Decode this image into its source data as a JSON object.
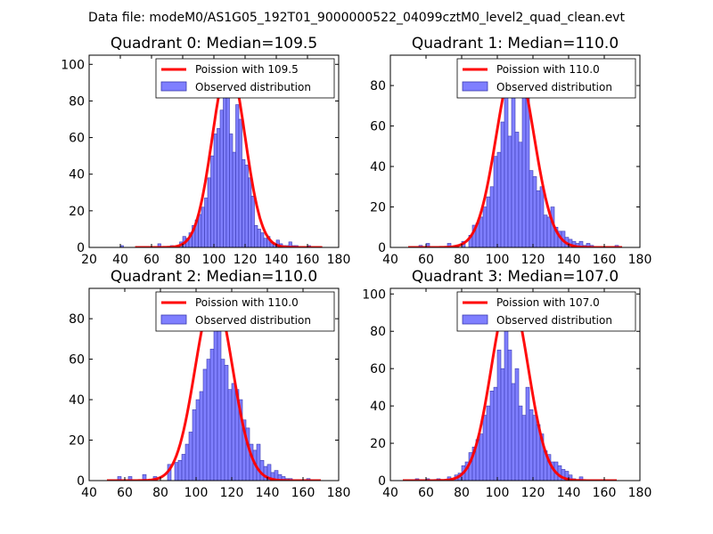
{
  "figure": {
    "suptitle": "Data file: modeM0/AS1G05_192T01_9000000522_04099cztM0_level2_quad_clean.evt"
  },
  "colors": {
    "histogram_fill": "#7f7fff",
    "histogram_edge": "#3a3ab0",
    "poisson_line": "#ff0000",
    "axes": "#000000",
    "background": "#ffffff"
  },
  "chart_data": [
    {
      "type": "bar",
      "title": "Quadrant 0: Median=109.5",
      "xlim": [
        20,
        180
      ],
      "ylim": [
        0,
        105
      ],
      "xticks": [
        20,
        40,
        60,
        80,
        100,
        120,
        140,
        160,
        180
      ],
      "yticks": [
        0,
        20,
        40,
        60,
        80,
        100
      ],
      "median": 109.5,
      "poisson_peak": 100,
      "legend": {
        "position": "top-right",
        "line_label": "Poission with 109.5",
        "bar_label": "Observed distribution"
      },
      "bar_width": 2,
      "bins": [
        40,
        64,
        72,
        78,
        80,
        82,
        84,
        86,
        88,
        90,
        92,
        94,
        96,
        98,
        100,
        102,
        104,
        106,
        108,
        110,
        112,
        114,
        116,
        118,
        120,
        122,
        124,
        126,
        128,
        130,
        132,
        134,
        136,
        138,
        140,
        142,
        144,
        146,
        148,
        150,
        152,
        160
      ],
      "counts": [
        1,
        2,
        1,
        3,
        6,
        5,
        8,
        12,
        15,
        18,
        22,
        27,
        38,
        50,
        62,
        65,
        75,
        96,
        88,
        62,
        52,
        78,
        70,
        48,
        45,
        38,
        28,
        12,
        10,
        8,
        5,
        6,
        3,
        2,
        4,
        2,
        1,
        1,
        3,
        1,
        1,
        1
      ]
    },
    {
      "type": "bar",
      "title": "Quadrant 1: Median=110.0",
      "xlim": [
        40,
        180
      ],
      "ylim": [
        0,
        95
      ],
      "xticks": [
        40,
        60,
        80,
        100,
        120,
        140,
        160,
        180
      ],
      "yticks": [
        0,
        20,
        40,
        60,
        80
      ],
      "median": 110.0,
      "poisson_peak": 92,
      "legend": {
        "position": "top-right",
        "line_label": "Poission with 110.0",
        "bar_label": "Observed distribution"
      },
      "bar_width": 2,
      "bins": [
        56,
        60,
        72,
        76,
        80,
        84,
        86,
        88,
        90,
        92,
        94,
        96,
        98,
        100,
        102,
        104,
        106,
        108,
        110,
        112,
        114,
        116,
        118,
        120,
        122,
        124,
        126,
        128,
        130,
        132,
        134,
        136,
        138,
        140,
        142,
        144,
        146,
        148,
        150,
        152,
        166
      ],
      "counts": [
        1,
        2,
        2,
        1,
        3,
        6,
        11,
        12,
        15,
        20,
        25,
        30,
        45,
        47,
        62,
        80,
        55,
        90,
        57,
        52,
        80,
        75,
        38,
        35,
        28,
        30,
        16,
        15,
        20,
        10,
        8,
        8,
        5,
        4,
        3,
        2,
        3,
        1,
        2,
        1,
        1
      ]
    },
    {
      "type": "bar",
      "title": "Quadrant 2: Median=110.0",
      "xlim": [
        40,
        180
      ],
      "ylim": [
        0,
        95
      ],
      "xticks": [
        40,
        60,
        80,
        100,
        120,
        140,
        160,
        180
      ],
      "yticks": [
        0,
        20,
        40,
        60,
        80
      ],
      "median": 110.0,
      "poisson_peak": 92,
      "legend": {
        "position": "top-right",
        "line_label": "Poission with 110.0",
        "bar_label": "Observed distribution"
      },
      "bar_width": 2,
      "bins": [
        56,
        62,
        70,
        76,
        84,
        88,
        90,
        92,
        94,
        96,
        98,
        100,
        102,
        104,
        106,
        108,
        110,
        112,
        114,
        116,
        118,
        120,
        122,
        124,
        126,
        128,
        130,
        132,
        134,
        136,
        138,
        140,
        142,
        144,
        146,
        148,
        150,
        152,
        162
      ],
      "counts": [
        2,
        2,
        3,
        2,
        8,
        9,
        10,
        13,
        18,
        24,
        35,
        40,
        44,
        55,
        60,
        65,
        75,
        83,
        60,
        57,
        45,
        48,
        45,
        40,
        30,
        26,
        18,
        15,
        18,
        10,
        7,
        8,
        4,
        5,
        3,
        2,
        1,
        1,
        1
      ]
    },
    {
      "type": "bar",
      "title": "Quadrant 3: Median=107.0",
      "xlim": [
        40,
        180
      ],
      "ylim": [
        0,
        103
      ],
      "xticks": [
        40,
        60,
        80,
        100,
        120,
        140,
        160,
        180
      ],
      "yticks": [
        0,
        20,
        40,
        60,
        80,
        100
      ],
      "median": 107.0,
      "poisson_peak": 100,
      "legend": {
        "position": "top-right",
        "line_label": "Poission with 107.0",
        "bar_label": "Observed distribution"
      },
      "bar_width": 2,
      "bins": [
        54,
        60,
        66,
        72,
        76,
        78,
        80,
        82,
        84,
        86,
        88,
        90,
        92,
        94,
        96,
        98,
        100,
        102,
        104,
        106,
        108,
        110,
        112,
        114,
        116,
        118,
        120,
        122,
        124,
        126,
        128,
        130,
        132,
        134,
        136,
        138,
        140,
        142,
        146
      ],
      "counts": [
        1,
        1,
        1,
        2,
        3,
        4,
        8,
        10,
        15,
        18,
        22,
        25,
        35,
        40,
        48,
        50,
        70,
        60,
        88,
        70,
        52,
        60,
        40,
        35,
        50,
        38,
        35,
        30,
        25,
        16,
        14,
        10,
        10,
        8,
        6,
        5,
        3,
        1,
        2
      ]
    }
  ]
}
